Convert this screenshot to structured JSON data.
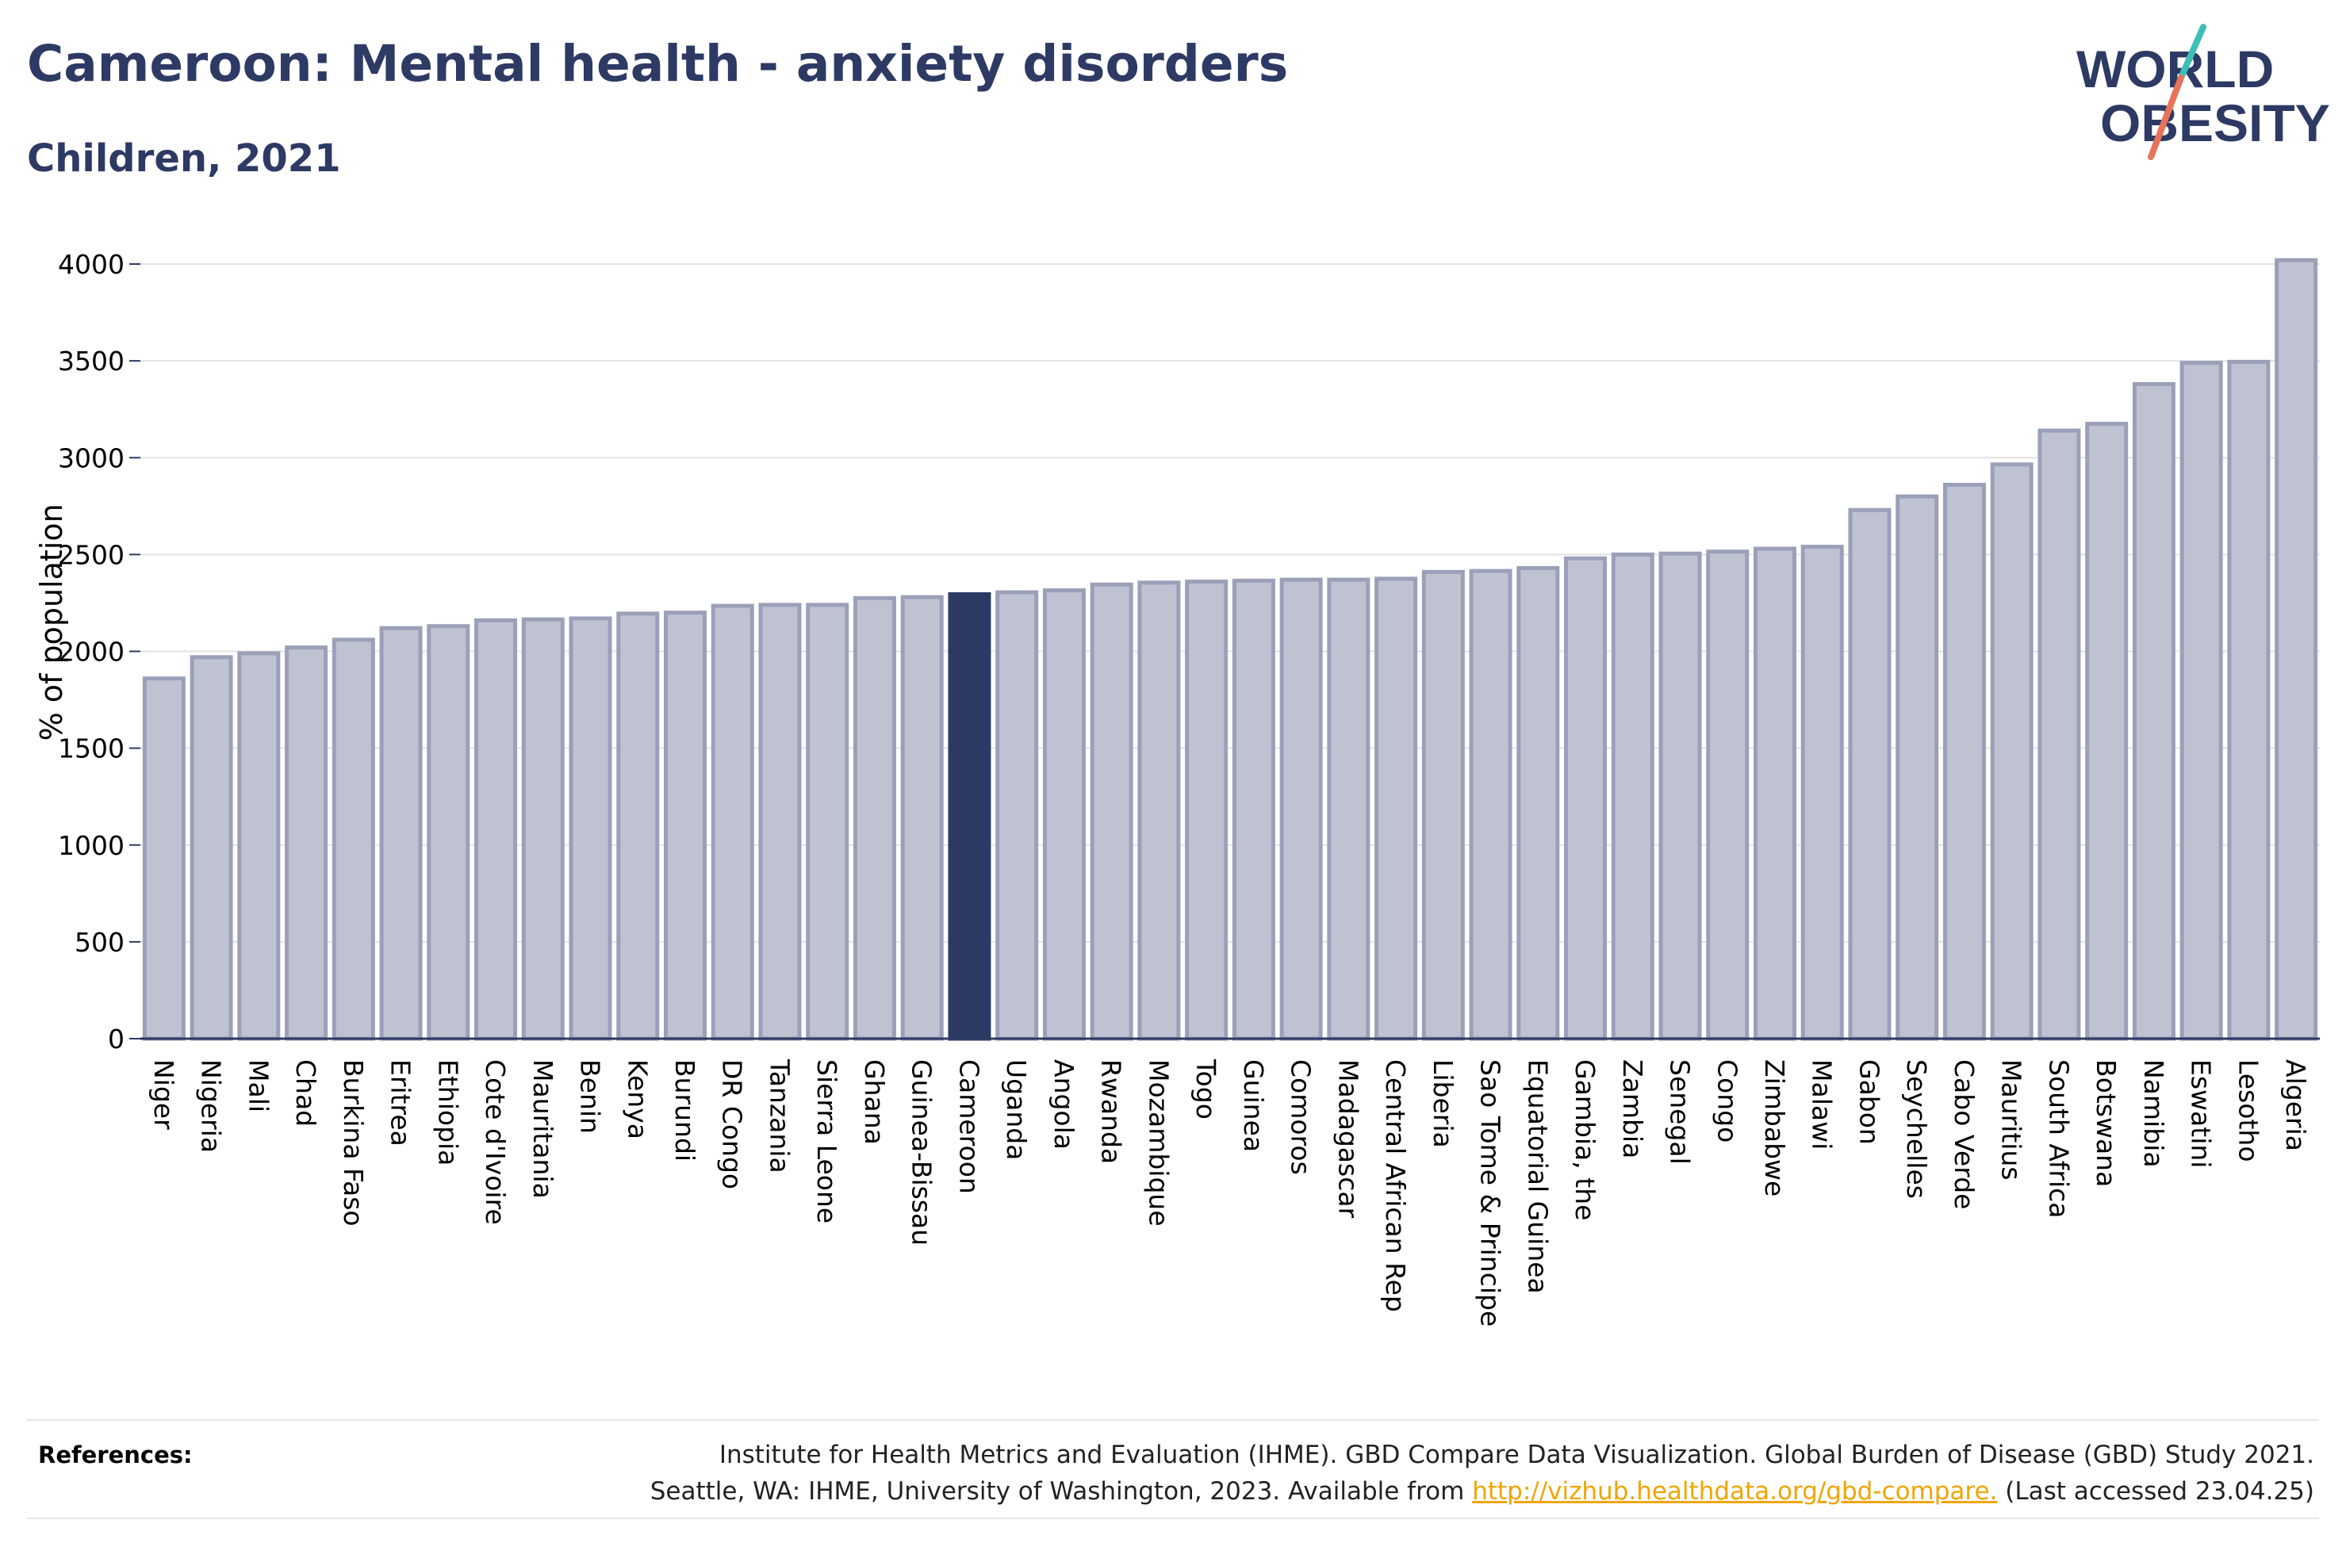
{
  "title": "Cameroon: Mental health - anxiety disorders",
  "subtitle": "Children, 2021",
  "logo": {
    "line1": "WORLD",
    "line2": "OBESITY",
    "colors": {
      "text": "#2d3a64",
      "slash_top": "#3dbfb8",
      "slash_bottom": "#e8735a"
    }
  },
  "colors": {
    "bar_fill": "#bfc3d1",
    "bar_stroke": "#9aa0b8",
    "highlight_fill": "#2d3a64",
    "axis": "#2d3a64",
    "grid": "#e3e3e3",
    "tick_text": "#000000"
  },
  "chart_data": {
    "type": "bar",
    "ylabel": "% of population",
    "ylim": [
      0,
      4100
    ],
    "yticks": [
      0,
      500,
      1000,
      1500,
      2000,
      2500,
      3000,
      3500,
      4000
    ],
    "grid": true,
    "highlight": "Cameroon",
    "categories": [
      "Niger",
      "Nigeria",
      "Mali",
      "Chad",
      "Burkina Faso",
      "Eritrea",
      "Ethiopia",
      "Cote d'Ivoire",
      "Mauritania",
      "Benin",
      "Kenya",
      "Burundi",
      "DR Congo",
      "Tanzania",
      "Sierra Leone",
      "Ghana",
      "Guinea-Bissau",
      "Cameroon",
      "Uganda",
      "Angola",
      "Rwanda",
      "Mozambique",
      "Togo",
      "Guinea",
      "Comoros",
      "Madagascar",
      "Central African Rep",
      "Liberia",
      "Sao Tome & Principe",
      "Equatorial Guinea",
      "Gambia, the",
      "Zambia",
      "Senegal",
      "Congo",
      "Zimbabwe",
      "Malawi",
      "Gabon",
      "Seychelles",
      "Cabo Verde",
      "Mauritius",
      "South Africa",
      "Botswana",
      "Namibia",
      "Eswatini",
      "Lesotho",
      "Algeria"
    ],
    "values": [
      1860,
      1970,
      1990,
      2020,
      2060,
      2120,
      2130,
      2160,
      2165,
      2170,
      2195,
      2200,
      2235,
      2240,
      2240,
      2275,
      2280,
      2295,
      2305,
      2315,
      2345,
      2355,
      2360,
      2365,
      2370,
      2370,
      2375,
      2410,
      2415,
      2430,
      2480,
      2500,
      2505,
      2515,
      2530,
      2540,
      2730,
      2800,
      2860,
      2965,
      3140,
      3175,
      3380,
      3490,
      3495,
      4020
    ]
  },
  "references": {
    "label": "References:",
    "line1": "Institute for Health Metrics and Evaluation (IHME). GBD Compare Data Visualization. Global Burden of Disease (GBD) Study 2021.",
    "line2_prefix": "Seattle, WA: IHME, University of Washington, 2023. Available from ",
    "link": "http://vizhub.healthdata.org/gbd-compare.",
    "line2_suffix": " (Last accessed 23.04.25)"
  }
}
